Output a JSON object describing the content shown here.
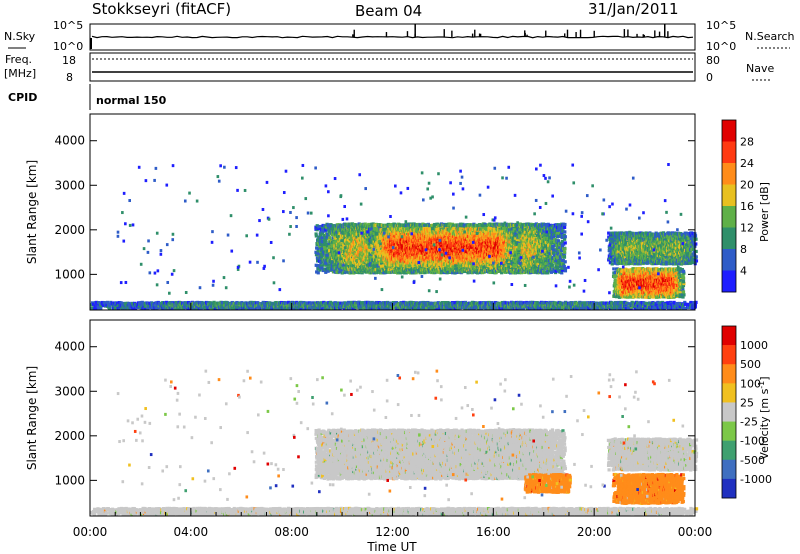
{
  "header": {
    "station": "Stokkseyri (fitACF)",
    "beam": "Beam 04",
    "date": "31/Jan/2011"
  },
  "strips": {
    "nsky": {
      "label": "N.Sky",
      "tick_top": "10^5",
      "tick_bottom": "10^0"
    },
    "nsearch": {
      "label": "N.Search",
      "tick_top": "10^5",
      "tick_bottom": "10^0"
    },
    "freq": {
      "label_line1": "Freq.",
      "label_line2": "[MHz]",
      "tick_top": "18",
      "tick_bottom": "8"
    },
    "nave": {
      "label": "Nave",
      "tick_top": "80",
      "tick_bottom": "0"
    },
    "cpid": {
      "label": "CPID",
      "mode": "normal 150"
    }
  },
  "chart_data": [
    {
      "type": "heatmap",
      "ylabel": "Slant Range [km]",
      "yticks": [
        "1000",
        "2000",
        "3000",
        "4000"
      ],
      "ylim": [
        200,
        4600
      ],
      "xlim": [
        0,
        24
      ],
      "colorbar": {
        "label": "Power [dB]",
        "ticks": [
          "4",
          "8",
          "12",
          "16",
          "20",
          "24",
          "28"
        ],
        "colors": [
          "#1e1eff",
          "#2e5cc8",
          "#2f8f6a",
          "#5fb048",
          "#e8c020",
          "#ff8c1a",
          "#ff3a12",
          "#e00000"
        ]
      },
      "regions": [
        {
          "t0": 8.9,
          "t1": 18.8,
          "r0": 1000,
          "r1": 2100,
          "level": 4
        },
        {
          "t0": 11.0,
          "t1": 17.0,
          "r0": 1150,
          "r1": 2000,
          "level": 6
        },
        {
          "t0": 20.5,
          "t1": 24.0,
          "r0": 1200,
          "r1": 1900,
          "level": 3
        },
        {
          "t0": 20.7,
          "t1": 23.5,
          "r0": 450,
          "r1": 1100,
          "level": 6
        },
        {
          "t0": 0.0,
          "t1": 24.0,
          "r0": 200,
          "r1": 340,
          "level": 2
        }
      ]
    },
    {
      "type": "heatmap",
      "ylabel": "Slant Range [km]",
      "yticks": [
        "1000",
        "2000",
        "3000",
        "4000"
      ],
      "ylim": [
        200,
        4600
      ],
      "xlim": [
        0,
        24
      ],
      "colorbar": {
        "label": "Velocity [m s^-1]",
        "ticks": [
          "1000",
          "500",
          "100",
          "25",
          "-25",
          "-100",
          "-500",
          "-1000"
        ],
        "colors": [
          "#2030c0",
          "#3f6fc0",
          "#3fa070",
          "#7cc848",
          "#c8c8c8",
          "#f0c020",
          "#ff8c1a",
          "#ff4010",
          "#e00000"
        ]
      },
      "regions": [
        {
          "t0": 8.9,
          "t1": 18.8,
          "r0": 1000,
          "r1": 2100,
          "level": 4
        },
        {
          "t0": 20.5,
          "t1": 24.0,
          "r0": 1200,
          "r1": 1900,
          "level": 4
        },
        {
          "t0": 20.7,
          "t1": 23.5,
          "r0": 450,
          "r1": 1100,
          "level": 6
        },
        {
          "t0": 17.2,
          "t1": 19.0,
          "r0": 700,
          "r1": 1100,
          "level": 6
        },
        {
          "t0": 0.0,
          "t1": 24.0,
          "r0": 200,
          "r1": 340,
          "level": 4
        }
      ]
    }
  ],
  "xaxis": {
    "label": "Time UT",
    "ticks": [
      "00:00",
      "04:00",
      "08:00",
      "12:00",
      "16:00",
      "20:00",
      "00:00"
    ]
  }
}
